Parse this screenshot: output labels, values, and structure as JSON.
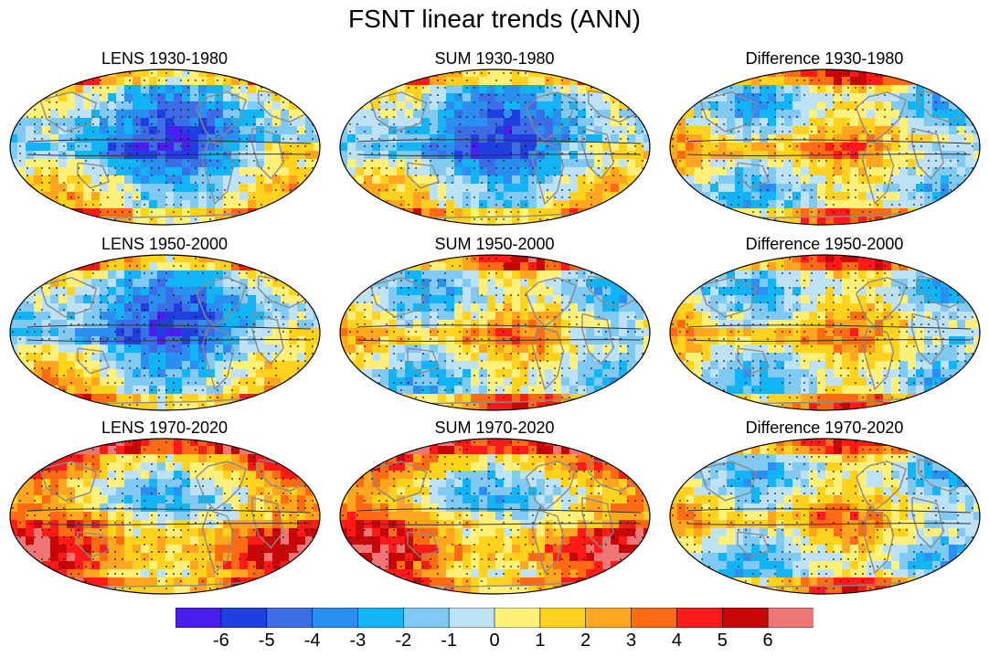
{
  "figure": {
    "title": "FSNT linear trends (ANN)"
  },
  "panels": [
    {
      "title": "LENS 1930-1980",
      "pattern": "cool"
    },
    {
      "title": "SUM 1930-1980",
      "pattern": "cool"
    },
    {
      "title": "Difference 1930-1980",
      "pattern": "mixed"
    },
    {
      "title": "LENS 1950-2000",
      "pattern": "cool"
    },
    {
      "title": "SUM 1950-2000",
      "pattern": "mixed"
    },
    {
      "title": "Difference 1950-2000",
      "pattern": "mixed"
    },
    {
      "title": "LENS 1970-2020",
      "pattern": "warm"
    },
    {
      "title": "SUM 1970-2020",
      "pattern": "warm"
    },
    {
      "title": "Difference 1970-2020",
      "pattern": "mixed"
    }
  ],
  "colorbar": {
    "colors": [
      "#4b1ef0",
      "#1f3fe0",
      "#3c6de6",
      "#2a8ff0",
      "#12b4f5",
      "#7fc9f2",
      "#bde2f5",
      "#fff07a",
      "#ffd21e",
      "#ffa51f",
      "#ff6a14",
      "#ff1a1a",
      "#c80808",
      "#f07575"
    ],
    "labels": [
      "-6",
      "-5",
      "-4",
      "-3",
      "-2",
      "-1",
      "0",
      "1",
      "2",
      "3",
      "4",
      "5",
      "6"
    ]
  }
}
